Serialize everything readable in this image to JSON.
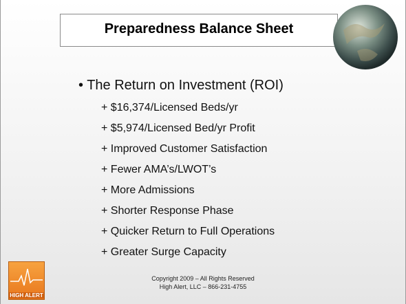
{
  "header": {
    "title": "Preparedness Balance Sheet"
  },
  "body": {
    "bullet": "The Return on Investment (ROI)",
    "items": [
      "+ $16,374/Licensed Beds/yr",
      "+ $5,974/Licensed Bed/yr Profit",
      "+ Improved Customer Satisfaction",
      "+ Fewer AMA’s/LWOT’s",
      "+ More Admissions",
      "+ Shorter Response Phase",
      "+ Quicker Return to Full Operations",
      "+ Greater Surge Capacity"
    ]
  },
  "footer": {
    "lines": [
      "Copyright 2009 – All Rights Reserved",
      "High Alert, LLC – 866-231-4755"
    ]
  },
  "logo": {
    "text": "HIGH ALERT"
  }
}
